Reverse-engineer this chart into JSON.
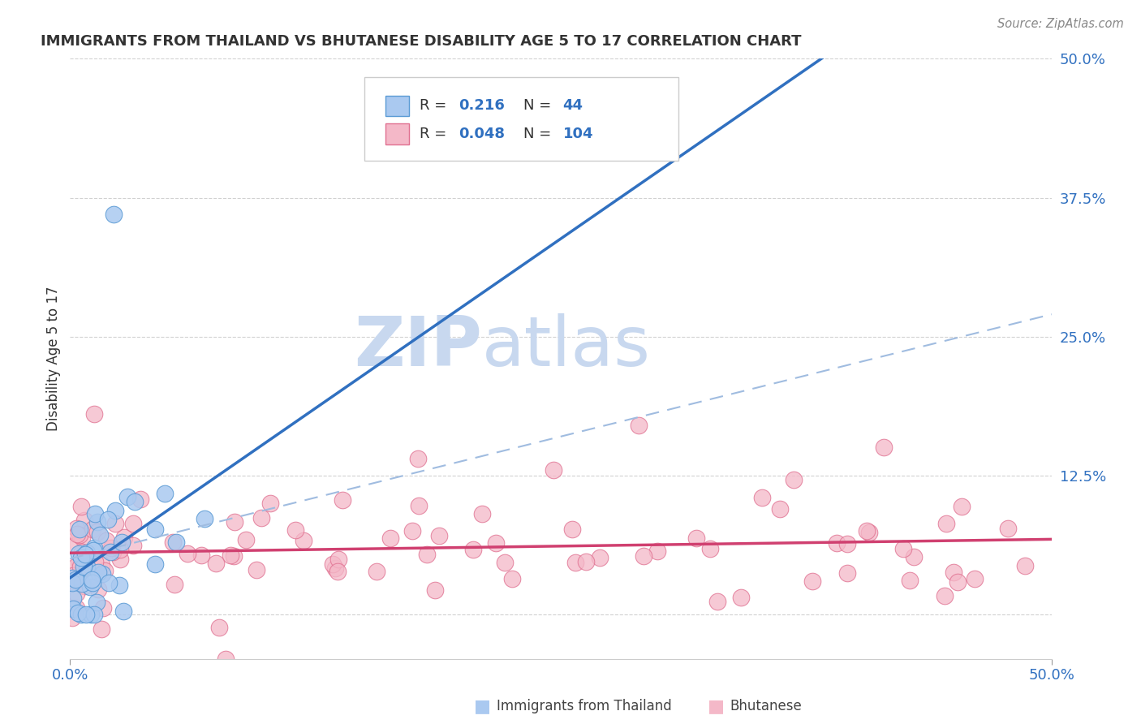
{
  "title": "IMMIGRANTS FROM THAILAND VS BHUTANESE DISABILITY AGE 5 TO 17 CORRELATION CHART",
  "source": "Source: ZipAtlas.com",
  "ylabel": "Disability Age 5 to 17",
  "xmin": 0.0,
  "xmax": 0.5,
  "ymin": -0.04,
  "ymax": 0.5,
  "yticks": [
    0.0,
    0.125,
    0.25,
    0.375,
    0.5
  ],
  "ytick_labels": [
    "",
    "12.5%",
    "25.0%",
    "37.5%",
    "50.0%"
  ],
  "series1_name": "Immigrants from Thailand",
  "series1_color": "#aac9f0",
  "series1_edge_color": "#5b9bd5",
  "series1_R": "0.216",
  "series1_N": "44",
  "series2_name": "Bhutanese",
  "series2_color": "#f4b8c8",
  "series2_edge_color": "#e07090",
  "series2_R": "0.048",
  "series2_N": "104",
  "trend1_color": "#3070c0",
  "trend2_color": "#d04070",
  "dashed_line_color": "#a0bce0",
  "R_value_color": "#3070c0",
  "N_value_color": "#3070c0",
  "R_label_color": "#333333",
  "N_label_color": "#333333",
  "watermark_ZIP_color": "#c8d8ef",
  "watermark_atlas_color": "#c8d8ef",
  "grid_color": "#cccccc",
  "background_color": "#ffffff",
  "title_color": "#333333",
  "ylabel_color": "#333333",
  "ytick_color": "#3070c0",
  "xtick_color": "#3070c0"
}
